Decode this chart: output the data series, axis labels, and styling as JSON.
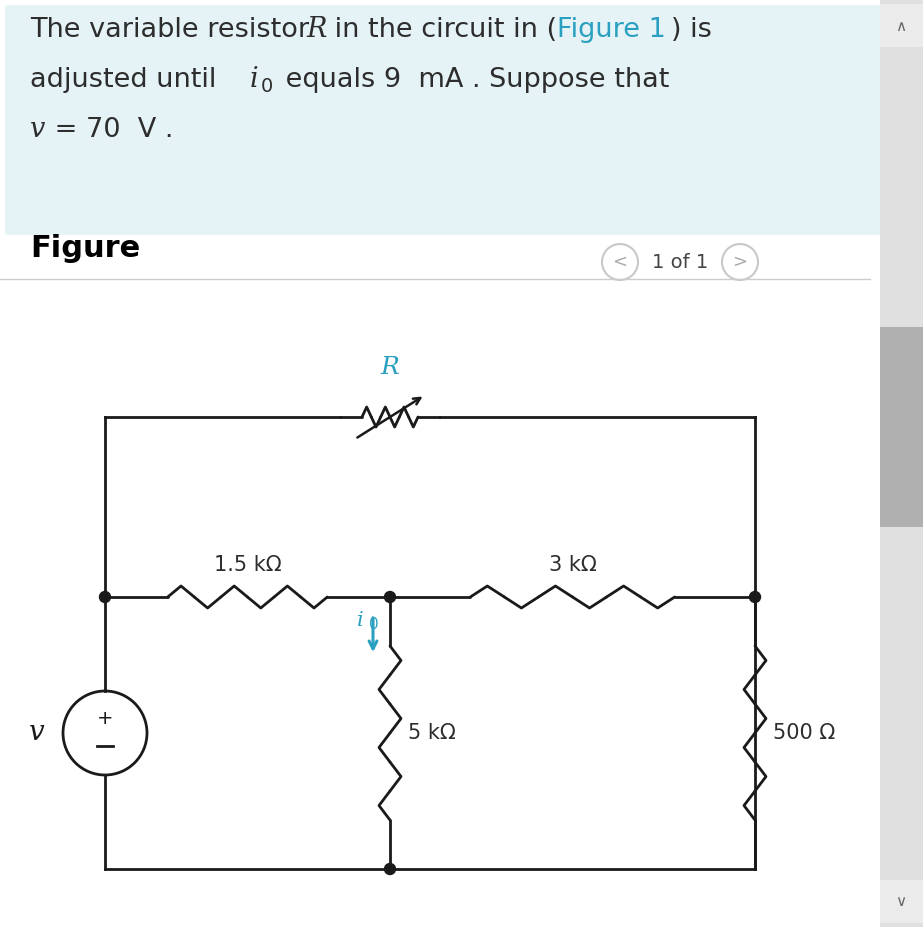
{
  "bg_color": "#ffffff",
  "header_bg": "#e5f3f7",
  "header_text_color": "#2d2d2d",
  "link_color": "#2aa0c0",
  "figure_label_color": "#000000",
  "cyan_color": "#2aa0c0",
  "circuit_line_color": "#1a1a1a",
  "nav_circle_color": "#cccccc",
  "scrollbar_bg": "#e0e0e0",
  "scrollbar_thumb": "#b0b0b0",
  "header_line1_parts": [
    {
      "text": "The variable resistor ",
      "style": "normal",
      "color": "#2d2d2d"
    },
    {
      "text": "R",
      "style": "italic",
      "color": "#2d2d2d"
    },
    {
      "text": " in the circuit in (",
      "style": "normal",
      "color": "#2d2d2d"
    },
    {
      "text": "Figure 1",
      "style": "normal",
      "color": "#2aa0c0"
    },
    {
      "text": ") is",
      "style": "normal",
      "color": "#2d2d2d"
    }
  ],
  "header_line2_parts": [
    {
      "text": "adjusted until ",
      "style": "normal",
      "color": "#2d2d2d"
    },
    {
      "text": "i",
      "style": "italic",
      "color": "#2d2d2d"
    },
    {
      "text": "0",
      "style": "sub",
      "color": "#2d2d2d"
    },
    {
      "text": " equals 9  mA . Suppose that",
      "style": "normal",
      "color": "#2d2d2d"
    }
  ],
  "header_line3_parts": [
    {
      "text": "v",
      "style": "italic",
      "color": "#2d2d2d"
    },
    {
      "text": " = 70  V .",
      "style": "normal",
      "color": "#2d2d2d"
    }
  ],
  "figure_title": "Figure",
  "nav_text": "1 of 1",
  "r1_label": "1.5 kΩ",
  "r2_label": "3 kΩ",
  "r3_label": "5 kΩ",
  "r4_label": "500 Ω",
  "R_label": "R",
  "v_label": "v",
  "i0_label": "i",
  "i0_sub": "0"
}
